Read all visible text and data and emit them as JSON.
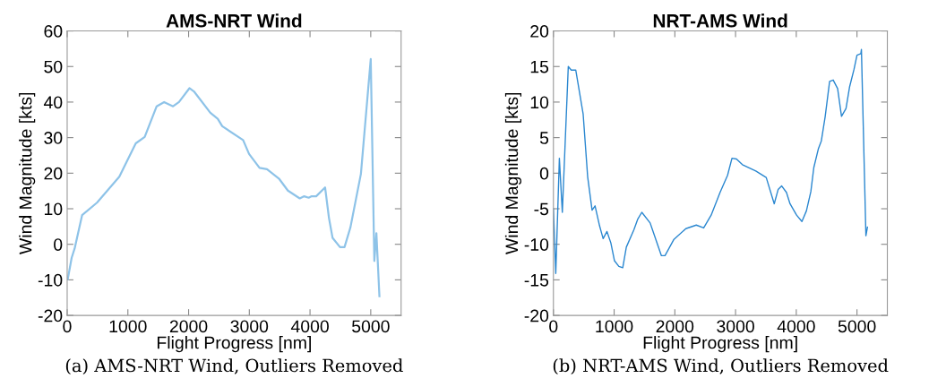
{
  "chart_data": [
    {
      "type": "line",
      "title": "AMS-NRT Wind",
      "xlabel": "Flight Progress [nm]",
      "ylabel": "Wind Magnitude [kts]",
      "xlim": [
        0,
        5500
      ],
      "xticks": [
        0,
        1000,
        2000,
        3000,
        4000,
        5000
      ],
      "ylim": [
        -20,
        60
      ],
      "yticks": [
        -20,
        -10,
        0,
        10,
        20,
        30,
        40,
        50,
        60
      ],
      "grid": false,
      "annotations": [
        "(a) AMS-NRT Wind, Outliers Removed"
      ],
      "series": [
        {
          "color": "#8ec3e8",
          "x": [
            10,
            74,
            123,
            246,
            491,
            859,
            1130,
            1277,
            1474,
            1597,
            1744,
            1842,
            2014,
            2088,
            2358,
            2480,
            2554,
            2898,
            2996,
            3168,
            3291,
            3487,
            3635,
            3831,
            3904,
            3978,
            4027,
            4101,
            4248,
            4312,
            4371,
            4494,
            4568,
            4666,
            4838,
            5000,
            5059,
            5093,
            5143
          ],
          "values": [
            -9.8,
            -3.8,
            -1.2,
            8.2,
            11.7,
            19,
            28.4,
            30.2,
            38.8,
            40,
            38.8,
            40,
            43.9,
            43,
            37,
            35.3,
            33.2,
            29.3,
            25.4,
            21.5,
            21.1,
            18.5,
            15.1,
            12.9,
            13.5,
            13.1,
            13.5,
            13.5,
            16,
            7.4,
            1.8,
            -0.8,
            -0.8,
            4.8,
            19.8,
            52.1,
            -4.7,
            3.1,
            -14.6
          ]
        }
      ]
    },
    {
      "type": "line",
      "title": "NRT-AMS Wind",
      "xlabel": "Flight Progress [nm]",
      "ylabel": "Wind Magnitude [kts]",
      "xlim": [
        0,
        5500
      ],
      "xticks": [
        0,
        1000,
        2000,
        3000,
        4000,
        5000
      ],
      "ylim": [
        -20,
        20
      ],
      "yticks": [
        -20,
        -15,
        -10,
        -5,
        0,
        5,
        10,
        15,
        20
      ],
      "grid": false,
      "annotations": [
        "(b) NRT-AMS Wind, Outliers Removed"
      ],
      "series": [
        {
          "color": "#2a87d0",
          "x": [
            0,
            39,
            98,
            147,
            245,
            294,
            368,
            490,
            564,
            637,
            686,
            760,
            819,
            882,
            946,
            1005,
            1078,
            1142,
            1201,
            1324,
            1387,
            1456,
            1593,
            1779,
            1838,
            1985,
            2181,
            2353,
            2475,
            2598,
            2745,
            2868,
            2941,
            3015,
            3113,
            3333,
            3505,
            3637,
            3701,
            3760,
            3838,
            3897,
            4005,
            4093,
            4167,
            4240,
            4289,
            4363,
            4412,
            4475,
            4549,
            4608,
            4681,
            4745,
            4819,
            4877,
            4951,
            5000,
            5064,
            5073,
            5147,
            5172
          ],
          "values": [
            -5.0,
            -14.1,
            2.1,
            -5.5,
            15,
            14.5,
            14.5,
            8.3,
            -0.5,
            -5.2,
            -4.6,
            -7.4,
            -9.2,
            -8.2,
            -9.8,
            -12.3,
            -13.1,
            -13.3,
            -10.4,
            -8.0,
            -6.5,
            -5.5,
            -7.0,
            -11.6,
            -11.6,
            -9.3,
            -7.8,
            -7.3,
            -7.7,
            -5.9,
            -2.7,
            -0.3,
            2.1,
            2.0,
            1.2,
            0.3,
            -0.6,
            -4.3,
            -2.3,
            -1.8,
            -2.7,
            -4.3,
            -5.9,
            -6.8,
            -5.3,
            -2.6,
            0.8,
            3.4,
            4.5,
            7.9,
            12.9,
            13.1,
            11.9,
            8.0,
            9.1,
            12.1,
            14.6,
            16.6,
            16.8,
            17.4,
            -8.8,
            -7.6
          ]
        }
      ]
    }
  ]
}
